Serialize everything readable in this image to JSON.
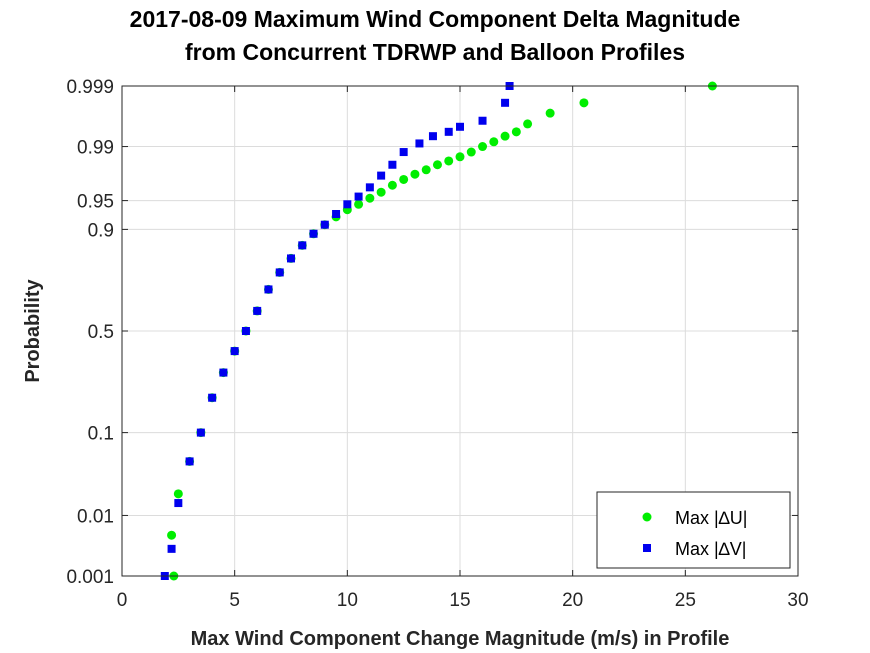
{
  "chart_data": {
    "type": "scatter",
    "title": "2017-08-09 Maximum Wind Component Delta Magnitude",
    "subtitle": "from Concurrent TDRWP and Balloon Profiles",
    "xlabel": "Max Wind Component Change Magnitude (m/s) in Profile",
    "ylabel": "Probability",
    "xlim": [
      0,
      30
    ],
    "x_ticks": [
      "0",
      "5",
      "10",
      "15",
      "20",
      "25",
      "30"
    ],
    "y_scale": "normal-probability",
    "y_ticks": [
      "0.001",
      "0.01",
      "0.1",
      "0.5",
      "0.9",
      "0.95",
      "0.99",
      "0.999"
    ],
    "grid": true,
    "legend_position": "bottom-right",
    "series": [
      {
        "name": "Max |∆U|",
        "color": "#00ee00",
        "marker": "circle",
        "points": [
          [
            2.3,
            0.001
          ],
          [
            2.2,
            0.005
          ],
          [
            2.5,
            0.02
          ],
          [
            3.0,
            0.05
          ],
          [
            3.5,
            0.1
          ],
          [
            4.0,
            0.2
          ],
          [
            4.5,
            0.3
          ],
          [
            5.0,
            0.4
          ],
          [
            5.5,
            0.5
          ],
          [
            6.0,
            0.6
          ],
          [
            6.5,
            0.7
          ],
          [
            7.0,
            0.77
          ],
          [
            7.5,
            0.82
          ],
          [
            8.0,
            0.86
          ],
          [
            8.5,
            0.89
          ],
          [
            9.0,
            0.91
          ],
          [
            9.5,
            0.925
          ],
          [
            10.0,
            0.937
          ],
          [
            10.5,
            0.945
          ],
          [
            11.0,
            0.953
          ],
          [
            11.5,
            0.96
          ],
          [
            12.0,
            0.967
          ],
          [
            12.5,
            0.972
          ],
          [
            13.0,
            0.976
          ],
          [
            13.5,
            0.979
          ],
          [
            14.0,
            0.982
          ],
          [
            14.5,
            0.984
          ],
          [
            15.0,
            0.986
          ],
          [
            15.5,
            0.988
          ],
          [
            16.0,
            0.99
          ],
          [
            16.5,
            0.9915
          ],
          [
            17.0,
            0.993
          ],
          [
            17.5,
            0.994
          ],
          [
            18.0,
            0.9955
          ],
          [
            19.0,
            0.997
          ],
          [
            20.5,
            0.998
          ],
          [
            26.2,
            0.999
          ]
        ]
      },
      {
        "name": "Max |∆V|",
        "color": "#0000ee",
        "marker": "square",
        "points": [
          [
            1.9,
            0.001
          ],
          [
            2.2,
            0.003
          ],
          [
            2.5,
            0.015
          ],
          [
            3.0,
            0.05
          ],
          [
            3.5,
            0.1
          ],
          [
            4.0,
            0.2
          ],
          [
            4.5,
            0.3
          ],
          [
            5.0,
            0.4
          ],
          [
            5.5,
            0.5
          ],
          [
            6.0,
            0.6
          ],
          [
            6.5,
            0.7
          ],
          [
            7.0,
            0.77
          ],
          [
            7.5,
            0.82
          ],
          [
            8.0,
            0.86
          ],
          [
            8.5,
            0.89
          ],
          [
            9.0,
            0.91
          ],
          [
            9.5,
            0.93
          ],
          [
            10.0,
            0.945
          ],
          [
            10.5,
            0.955
          ],
          [
            11.0,
            0.965
          ],
          [
            11.5,
            0.975
          ],
          [
            12.0,
            0.982
          ],
          [
            12.5,
            0.988
          ],
          [
            13.2,
            0.991
          ],
          [
            13.8,
            0.993
          ],
          [
            14.5,
            0.994
          ],
          [
            15.0,
            0.995
          ],
          [
            16.0,
            0.996
          ],
          [
            17.0,
            0.998
          ],
          [
            17.2,
            0.999
          ]
        ]
      }
    ]
  }
}
